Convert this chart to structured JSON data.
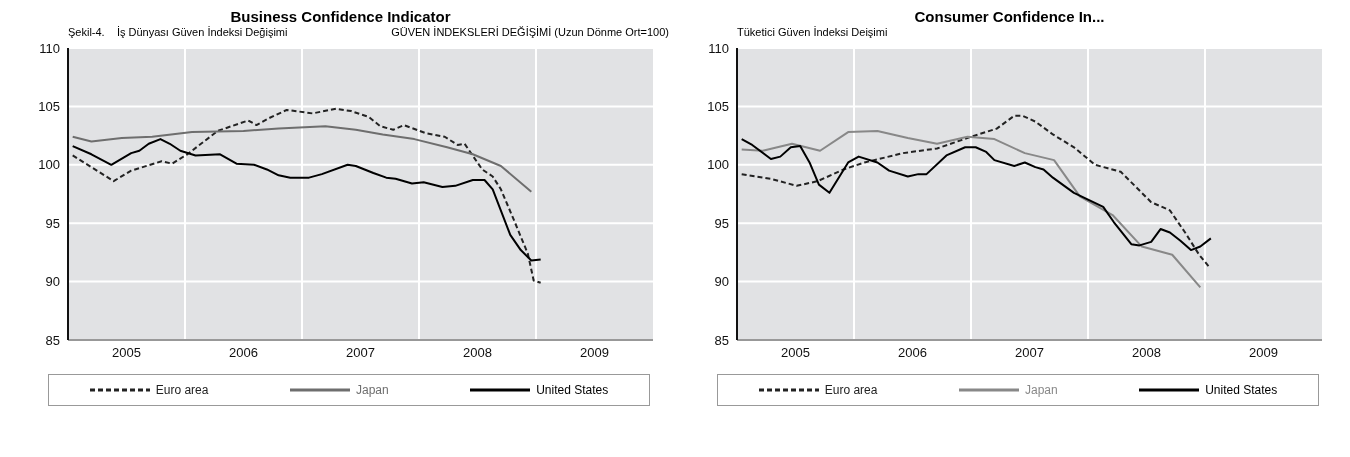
{
  "chart_data": [
    {
      "type": "line",
      "title": "Business Confidence Indicator",
      "subtitle": "Şekil-4.    İş Dünyası Güven İndeksi Değişimi",
      "annotations": [
        "GÜVEN İNDEKSLERİ DEĞİŞİMİ (Uzun Dönme Ort=100)"
      ],
      "xlim": [
        2005,
        2010
      ],
      "xticks": [
        {
          "value": 2005.5,
          "label": "2005"
        },
        {
          "value": 2006,
          "label": null
        },
        {
          "value": 2006.5,
          "label": "2006"
        },
        {
          "value": 2007,
          "label": null
        },
        {
          "value": 2007.5,
          "label": "2007"
        },
        {
          "value": 2008,
          "label": null
        },
        {
          "value": 2008.5,
          "label": "2008"
        },
        {
          "value": 2009,
          "label": null
        },
        {
          "value": 2009.5,
          "label": "2009"
        }
      ],
      "ylim": [
        85,
        110
      ],
      "yticks": [
        85,
        90,
        95,
        100,
        105,
        110
      ],
      "grid": true,
      "legend": "bottom",
      "marker": "none",
      "series": [
        {
          "name": "Euro area",
          "color": "#222222",
          "line_style": "dashed",
          "x": [
            2005.04,
            2005.39,
            2005.54,
            2005.8,
            2005.89,
            2006.02,
            2006.28,
            2006.54,
            2006.61,
            2006.72,
            2006.87,
            2007.09,
            2007.29,
            2007.42,
            2007.57,
            2007.67,
            2007.78,
            2007.87,
            2008.06,
            2008.22,
            2008.33,
            2008.39,
            2008.54,
            2008.63,
            2008.7,
            2008.81,
            2008.93,
            2008.98,
            2009.04
          ],
          "values": [
            100.8,
            98.6,
            99.5,
            100.3,
            100.1,
            100.9,
            102.9,
            103.8,
            103.4,
            104.0,
            104.7,
            104.4,
            104.8,
            104.6,
            104.1,
            103.3,
            103.0,
            103.4,
            102.7,
            102.4,
            101.7,
            101.8,
            99.6,
            99.0,
            97.9,
            95.3,
            92.4,
            90.1,
            89.9
          ]
        },
        {
          "name": "Japan",
          "color": "#6e6e6e",
          "line_style": "solid",
          "x": [
            2005.04,
            2005.2,
            2005.46,
            2005.72,
            2006.06,
            2006.5,
            2006.8,
            2007.2,
            2007.46,
            2007.69,
            2007.96,
            2008.24,
            2008.46,
            2008.7,
            2008.96
          ],
          "values": [
            102.4,
            102.0,
            102.3,
            102.4,
            102.8,
            102.9,
            103.1,
            103.3,
            103.0,
            102.6,
            102.2,
            101.5,
            100.9,
            99.9,
            97.7
          ]
        },
        {
          "name": "United States",
          "color": "#000000",
          "line_style": "solid",
          "x": [
            2005.04,
            2005.2,
            2005.37,
            2005.54,
            2005.61,
            2005.69,
            2005.79,
            2005.87,
            2005.96,
            2006.09,
            2006.3,
            2006.44,
            2006.59,
            2006.7,
            2006.8,
            2006.9,
            2007.06,
            2007.17,
            2007.39,
            2007.46,
            2007.61,
            2007.72,
            2007.8,
            2007.94,
            2008.04,
            2008.2,
            2008.31,
            2008.46,
            2008.56,
            2008.63,
            2008.78,
            2008.87,
            2008.96,
            2009.04
          ],
          "values": [
            101.6,
            100.9,
            100.0,
            101.0,
            101.2,
            101.8,
            102.2,
            101.8,
            101.2,
            100.8,
            100.9,
            100.1,
            100.0,
            99.6,
            99.1,
            98.9,
            98.9,
            99.2,
            100.0,
            99.9,
            99.3,
            98.9,
            98.8,
            98.4,
            98.5,
            98.1,
            98.2,
            98.7,
            98.7,
            97.9,
            94.0,
            92.7,
            91.8,
            91.9
          ]
        }
      ]
    },
    {
      "type": "line",
      "title": "Consumer Confidence In...",
      "subtitle": "Tüketici Güven İndeksi Deişimi",
      "xlim": [
        2005,
        2010
      ],
      "xticks": [
        {
          "value": 2005.5,
          "label": "2005"
        },
        {
          "value": 2006,
          "label": null
        },
        {
          "value": 2006.5,
          "label": "2006"
        },
        {
          "value": 2007,
          "label": null
        },
        {
          "value": 2007.5,
          "label": "2007"
        },
        {
          "value": 2008,
          "label": null
        },
        {
          "value": 2008.5,
          "label": "2008"
        },
        {
          "value": 2009,
          "label": null
        },
        {
          "value": 2009.5,
          "label": "2009"
        }
      ],
      "ylim": [
        85,
        110
      ],
      "yticks": [
        85,
        90,
        95,
        100,
        105,
        110
      ],
      "grid": true,
      "legend": "bottom",
      "marker": "none",
      "series": [
        {
          "name": "Euro area",
          "color": "#222222",
          "line_style": "dashed",
          "x": [
            2005.04,
            2005.29,
            2005.51,
            2005.69,
            2005.91,
            2006.09,
            2006.42,
            2006.71,
            2007.0,
            2007.22,
            2007.37,
            2007.44,
            2007.55,
            2007.7,
            2007.88,
            2008.06,
            2008.17,
            2008.28,
            2008.39,
            2008.54,
            2008.7,
            2008.83,
            2008.95,
            2009.04
          ],
          "values": [
            99.2,
            98.8,
            98.2,
            98.6,
            99.6,
            100.2,
            101.0,
            101.4,
            102.4,
            103.1,
            104.2,
            104.2,
            103.7,
            102.6,
            101.5,
            100.0,
            99.7,
            99.4,
            98.3,
            96.8,
            96.1,
            94.2,
            92.3,
            91.2
          ]
        },
        {
          "name": "Japan",
          "color": "#888888",
          "line_style": "solid",
          "x": [
            2005.04,
            2005.22,
            2005.47,
            2005.71,
            2005.95,
            2006.2,
            2006.46,
            2006.71,
            2006.97,
            2007.2,
            2007.46,
            2007.71,
            2007.93,
            2008.21,
            2008.46,
            2008.72,
            2008.96
          ],
          "values": [
            101.3,
            101.2,
            101.8,
            101.2,
            102.8,
            102.9,
            102.3,
            101.8,
            102.4,
            102.2,
            101.0,
            100.4,
            97.3,
            95.7,
            93.0,
            92.3,
            89.5
          ]
        },
        {
          "name": "United States",
          "color": "#000000",
          "line_style": "solid",
          "x": [
            2005.04,
            2005.13,
            2005.29,
            2005.37,
            2005.46,
            2005.54,
            2005.62,
            2005.7,
            2005.79,
            2005.95,
            2006.04,
            2006.2,
            2006.3,
            2006.46,
            2006.55,
            2006.62,
            2006.79,
            2006.95,
            2007.04,
            2007.13,
            2007.2,
            2007.37,
            2007.46,
            2007.55,
            2007.62,
            2007.7,
            2007.88,
            2008.13,
            2008.22,
            2008.37,
            2008.44,
            2008.54,
            2008.62,
            2008.7,
            2008.79,
            2008.88,
            2008.96,
            2009.05
          ],
          "values": [
            102.2,
            101.7,
            100.5,
            100.7,
            101.5,
            101.6,
            100.2,
            98.3,
            97.6,
            100.2,
            100.7,
            100.2,
            99.5,
            99.0,
            99.2,
            99.2,
            100.8,
            101.5,
            101.5,
            101.1,
            100.4,
            99.9,
            100.2,
            99.8,
            99.6,
            98.9,
            97.6,
            96.4,
            95.1,
            93.2,
            93.1,
            93.4,
            94.5,
            94.2,
            93.5,
            92.7,
            93.0,
            93.7
          ]
        }
      ]
    }
  ]
}
